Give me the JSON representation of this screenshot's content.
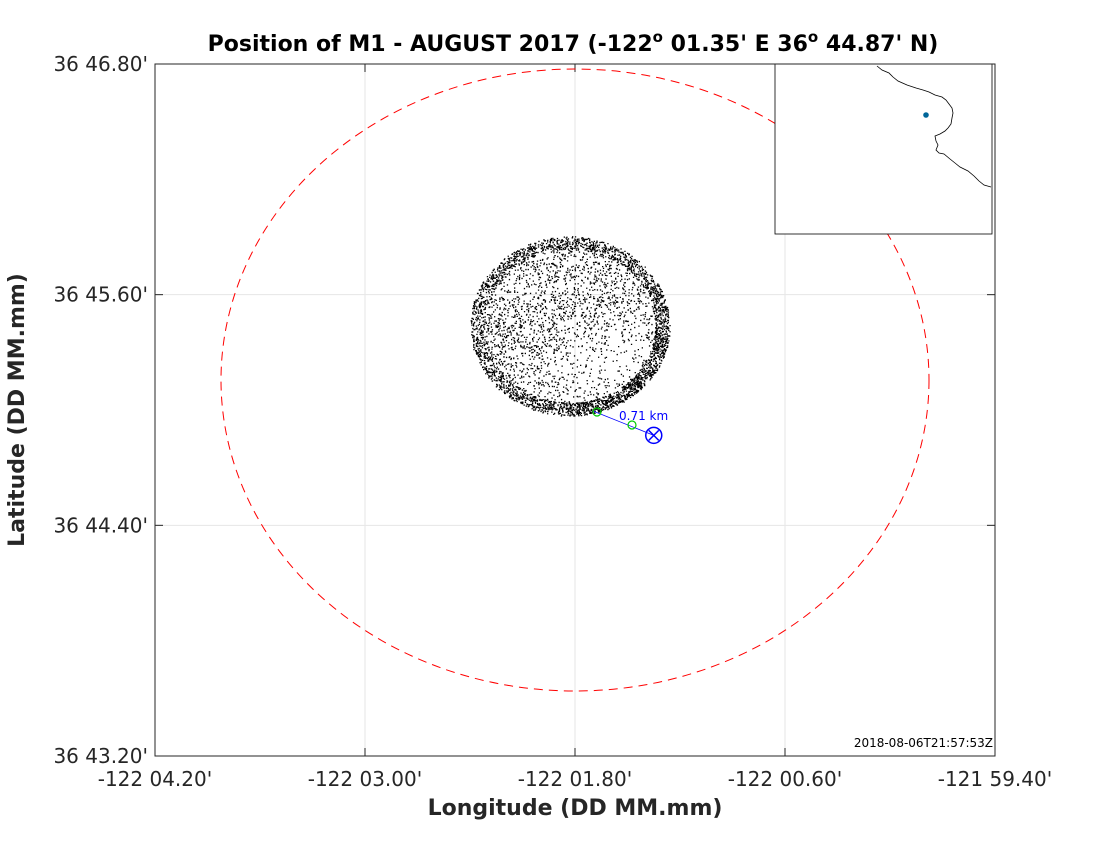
{
  "chart_data": {
    "type": "scatter",
    "title": "Position of M1 - AUGUST 2017 (-122° 01.35' E  36° 44.87' N)",
    "title_parts": {
      "prefix": "Position of M1 - AUGUST 2017 (-122",
      "sup1": "o",
      "mid": " 01.35' E  36",
      "sup2": "o",
      "suffix": " 44.87' N)"
    },
    "xlabel": "Longitude (DD MM.mm)",
    "ylabel": "Latitude (DD MM.mm)",
    "xlim": [
      -122.07,
      -121.99
    ],
    "ylim": [
      36.72,
      36.78
    ],
    "x_ticks": [
      {
        "value": -122.07,
        "label": "-122 04.20'"
      },
      {
        "value": -122.05,
        "label": "-122 03.00'"
      },
      {
        "value": -122.03,
        "label": "-122 01.80'"
      },
      {
        "value": -122.01,
        "label": "-122 00.60'"
      },
      {
        "value": -121.99,
        "label": "-121 59.40'"
      }
    ],
    "y_ticks": [
      {
        "value": 36.72,
        "label": "36 43.20'"
      },
      {
        "value": 36.74,
        "label": "36 44.40'"
      },
      {
        "value": 36.76,
        "label": "36 45.60'"
      },
      {
        "value": 36.78,
        "label": "36 46.80'"
      }
    ],
    "grid": true,
    "mooring_position": {
      "lon": -122.0225,
      "lat": 36.7478
    },
    "cloud": {
      "center_lon": -122.0305,
      "center_lat": 36.7573,
      "approx_points": 14000
    },
    "watch_circle": {
      "center_lon": -122.03,
      "center_lat": 36.7526,
      "color": "#ff0000",
      "style": "dashed"
    },
    "distance_label": "0.71 km",
    "timestamp": "2018-08-06T21:57:53Z",
    "colors": {
      "points": "#000000",
      "watch_circle": "#ff0000",
      "mooring": "#0000ff",
      "recent": "#00cc00",
      "inset_marker": "#006699"
    }
  }
}
